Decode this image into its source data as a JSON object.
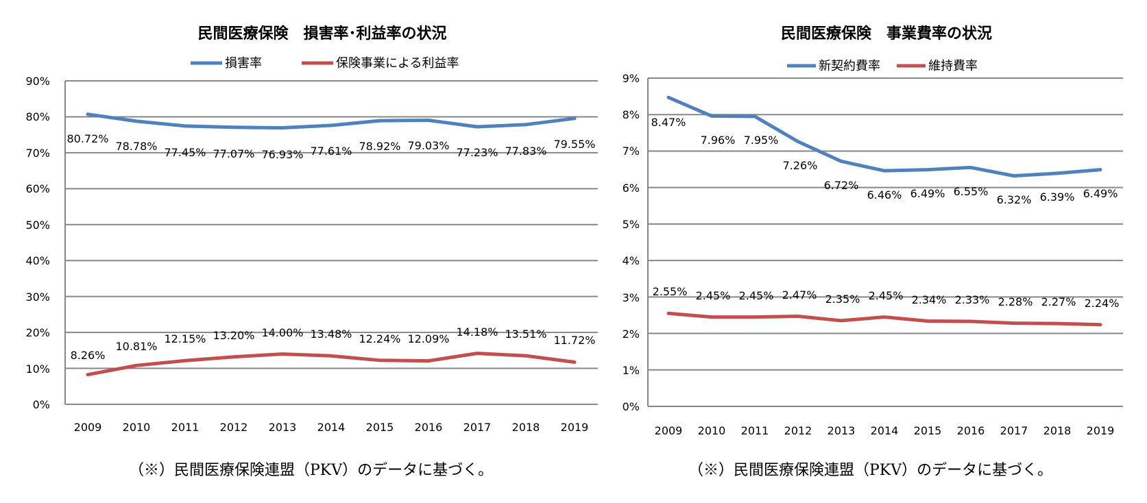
{
  "chart_data": [
    {
      "type": "line",
      "title": "民間医療保険　損害率･利益率の状況",
      "categories": [
        "2009",
        "2010",
        "2011",
        "2012",
        "2013",
        "2014",
        "2015",
        "2016",
        "2017",
        "2018",
        "2019"
      ],
      "ylim": [
        0,
        90
      ],
      "yticks": [
        "0%",
        "10%",
        "20%",
        "30%",
        "40%",
        "50%",
        "60%",
        "70%",
        "80%",
        "90%"
      ],
      "grid": true,
      "legend_position": "top",
      "series": [
        {
          "name": "損害率",
          "color": "#4f81bd",
          "values": [
            80.72,
            78.78,
            77.45,
            77.07,
            76.93,
            77.61,
            78.92,
            79.03,
            77.23,
            77.83,
            79.55
          ],
          "labels": [
            "80.72%",
            "78.78%",
            "77.45%",
            "77.07%",
            "76.93%",
            "77.61%",
            "78.92%",
            "79.03%",
            "77.23%",
            "77.83%",
            "79.55%"
          ]
        },
        {
          "name": "保険事業による利益率",
          "color": "#c0504d",
          "values": [
            8.26,
            10.81,
            12.15,
            13.2,
            14.0,
            13.48,
            12.24,
            12.09,
            14.18,
            13.51,
            11.72
          ],
          "labels": [
            "8.26%",
            "10.81%",
            "12.15%",
            "13.20%",
            "14.00%",
            "13.48%",
            "12.24%",
            "12.09%",
            "14.18%",
            "13.51%",
            "11.72%"
          ]
        }
      ],
      "note": "（※）民間医療保険連盟（PKV）のデータに基づく。"
    },
    {
      "type": "line",
      "title": "民間医療保険　事業費率の状況",
      "categories": [
        "2009",
        "2010",
        "2011",
        "2012",
        "2013",
        "2014",
        "2015",
        "2016",
        "2017",
        "2018",
        "2019"
      ],
      "ylim": [
        0,
        9
      ],
      "yticks": [
        "0%",
        "1%",
        "2%",
        "3%",
        "4%",
        "5%",
        "6%",
        "7%",
        "8%",
        "9%"
      ],
      "grid": true,
      "legend_position": "top",
      "series": [
        {
          "name": "新契約費率",
          "color": "#4f81bd",
          "values": [
            8.47,
            7.96,
            7.95,
            7.26,
            6.72,
            6.46,
            6.49,
            6.55,
            6.32,
            6.39,
            6.49
          ],
          "labels": [
            "8.47%",
            "7.96%",
            "7.95%",
            "7.26%",
            "6.72%",
            "6.46%",
            "6.49%",
            "6.55%",
            "6.32%",
            "6.39%",
            "6.49%"
          ]
        },
        {
          "name": "維持費率",
          "color": "#c0504d",
          "values": [
            2.55,
            2.45,
            2.45,
            2.47,
            2.35,
            2.45,
            2.34,
            2.33,
            2.28,
            2.27,
            2.24
          ],
          "labels": [
            "2.55%",
            "2.45%",
            "2.45%",
            "2.47%",
            "2.35%",
            "2.45%",
            "2.34%",
            "2.33%",
            "2.28%",
            "2.27%",
            "2.24%"
          ]
        }
      ],
      "note": "（※）民間医療保険連盟（PKV）のデータに基づく。"
    }
  ]
}
